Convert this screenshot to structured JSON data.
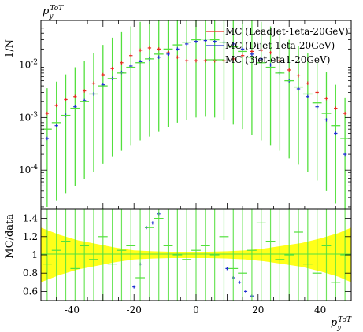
{
  "chart_data": [
    {
      "type": "scatter",
      "panel": "main",
      "title": "p_y^{ToT}",
      "ylabel": "1/N",
      "yscale": "log",
      "xlim": [
        -50,
        50
      ],
      "ylim": [
        1.8e-05,
        0.07
      ],
      "yticks": [
        {
          "value": 0.01,
          "label": "10^{-2}"
        },
        {
          "value": 0.001,
          "label": "10^{-3}"
        },
        {
          "value": 0.0001,
          "label": "10^{-4}"
        }
      ],
      "legend_position": "top-right",
      "colors": {
        "lead": "#e8281e",
        "dijet": "#1f2fd0",
        "threejet": "#53e03d"
      },
      "series": [
        {
          "name": "MC (LeadJet-1eta-20GeV)",
          "key": "lead",
          "x": [
            -48,
            -45,
            -42,
            -39,
            -36,
            -33,
            -30,
            -27,
            -24,
            -21,
            -18,
            -15,
            -12,
            -9,
            -6,
            -3,
            0,
            3,
            6,
            9,
            12,
            15,
            18,
            21,
            24,
            27,
            30,
            33,
            36,
            39,
            42,
            45,
            48
          ],
          "y": [
            0.0012,
            0.0017,
            0.0022,
            0.0025,
            0.0032,
            0.0045,
            0.0065,
            0.0085,
            0.011,
            0.015,
            0.019,
            0.021,
            0.02,
            0.017,
            0.014,
            0.012,
            0.012,
            0.012,
            0.012,
            0.012,
            0.013,
            0.015,
            0.018,
            0.019,
            0.017,
            0.012,
            0.008,
            0.0062,
            0.0045,
            0.003,
            0.0023,
            0.0015,
            0.0012
          ]
        },
        {
          "name": "MC (Dijet-1eta-20GeV)",
          "key": "dijet",
          "x": [
            -48,
            -45,
            -42,
            -39,
            -36,
            -33,
            -30,
            -27,
            -24,
            -21,
            -18,
            -15,
            -12,
            -9,
            -6,
            -3,
            0,
            3,
            6,
            9,
            12,
            15,
            18,
            21,
            24,
            27,
            30,
            33,
            36,
            39,
            42,
            45,
            48
          ],
          "y": [
            0.0004,
            0.0007,
            0.0011,
            0.0016,
            0.0021,
            0.0028,
            0.0042,
            0.0055,
            0.0072,
            0.0095,
            0.0115,
            0.013,
            0.014,
            0.016,
            0.02,
            0.025,
            0.028,
            0.029,
            0.028,
            0.027,
            0.025,
            0.02,
            0.016,
            0.013,
            0.01,
            0.007,
            0.005,
            0.0035,
            0.0025,
            0.0016,
            0.0009,
            0.0005,
            0.0002
          ]
        },
        {
          "name": "MC (3jet-eta1-20GeV)",
          "key": "threejet",
          "x": [
            -48,
            -45,
            -42,
            -39,
            -36,
            -33,
            -30,
            -27,
            -24,
            -21,
            -18,
            -15,
            -12,
            -9,
            -6,
            -3,
            0,
            3,
            6,
            9,
            12,
            15,
            18,
            21,
            24,
            27,
            30,
            33,
            36,
            39,
            42,
            45,
            48
          ],
          "y": [
            0.0006,
            0.0008,
            0.0011,
            0.0015,
            0.002,
            0.0028,
            0.004,
            0.0055,
            0.007,
            0.009,
            0.011,
            0.013,
            0.016,
            0.02,
            0.024,
            0.027,
            0.03,
            0.031,
            0.03,
            0.027,
            0.022,
            0.018,
            0.014,
            0.011,
            0.009,
            0.007,
            0.005,
            0.0038,
            0.0028,
            0.0019,
            0.0012,
            0.0007,
            0.0004
          ]
        }
      ]
    },
    {
      "type": "scatter",
      "panel": "ratio",
      "ylabel": "MC/data",
      "xlabel": "p_y^{ToT}",
      "xlim": [
        -50,
        50
      ],
      "ylim": [
        0.5,
        1.5
      ],
      "xticks": [
        -40,
        -20,
        0,
        20,
        40
      ],
      "yticks": [
        0.6,
        0.8,
        1,
        1.2,
        1.4
      ],
      "band": {
        "x": [
          -50,
          -44,
          -38,
          -32,
          -26,
          -20,
          -14,
          -8,
          -2,
          4,
          10,
          16,
          22,
          28,
          34,
          40,
          46,
          50
        ],
        "half_width": [
          0.3,
          0.22,
          0.16,
          0.12,
          0.08,
          0.05,
          0.04,
          0.035,
          0.035,
          0.035,
          0.04,
          0.05,
          0.07,
          0.1,
          0.13,
          0.18,
          0.24,
          0.3
        ],
        "color": "#ffff00"
      },
      "series": [
        {
          "name": "MC (Dijet-1eta-20GeV)",
          "key": "dijet",
          "x": [
            -20,
            -18,
            -16,
            -14,
            -12,
            10,
            12,
            14,
            16,
            18
          ],
          "y": [
            0.65,
            0.9,
            1.3,
            1.35,
            1.45,
            0.85,
            0.75,
            0.7,
            0.6,
            0.55
          ]
        },
        {
          "name": "MC (3jet-eta1-20GeV)",
          "key": "threejet",
          "x": [
            -48,
            -45,
            -42,
            -39,
            -36,
            -33,
            -30,
            -27,
            -24,
            -21,
            -18,
            -15,
            -12,
            -9,
            -6,
            -3,
            0,
            3,
            6,
            9,
            12,
            15,
            18,
            21,
            24,
            27,
            30,
            33,
            36,
            39,
            42,
            45,
            48
          ],
          "y": [
            0.9,
            1.05,
            1.15,
            0.85,
            1.1,
            0.95,
            1.2,
            0.9,
            1.05,
            1.1,
            0.75,
            1.3,
            1.4,
            1.1,
            1.0,
            0.95,
            1.05,
            1.1,
            1.0,
            1.2,
            0.85,
            0.8,
            1.05,
            1.35,
            1.15,
            0.95,
            1.0,
            1.25,
            0.9,
            0.8,
            1.1,
            0.7,
            1.0
          ]
        }
      ]
    }
  ]
}
